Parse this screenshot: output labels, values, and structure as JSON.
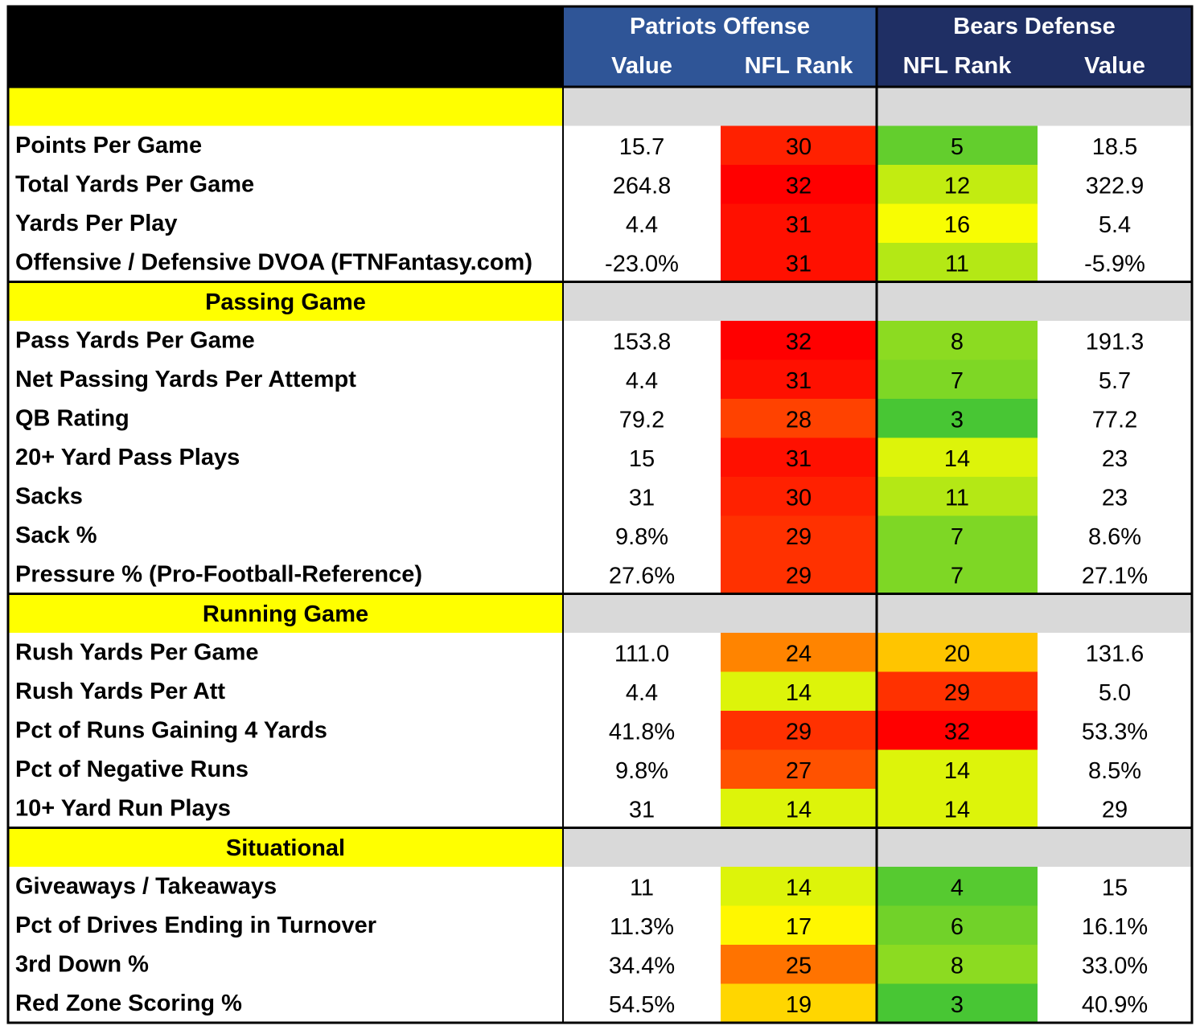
{
  "chart_data": {
    "type": "table",
    "header": {
      "offense_team": "Patriots Offense",
      "defense_team": "Bears Defense",
      "columns": [
        "Value",
        "NFL Rank",
        "NFL Rank",
        "Value"
      ]
    },
    "sections": [
      {
        "title": "",
        "rows": [
          {
            "label": "Points Per Game",
            "off_value": "15.7",
            "off_rank": 30,
            "def_rank": 5,
            "def_value": "18.5"
          },
          {
            "label": "Total Yards Per Game",
            "off_value": "264.8",
            "off_rank": 32,
            "def_rank": 12,
            "def_value": "322.9"
          },
          {
            "label": "Yards Per Play",
            "off_value": "4.4",
            "off_rank": 31,
            "def_rank": 16,
            "def_value": "5.4"
          },
          {
            "label": "Offensive / Defensive DVOA (FTNFantasy.com)",
            "off_value": "-23.0%",
            "off_rank": 31,
            "def_rank": 11,
            "def_value": "-5.9%"
          }
        ]
      },
      {
        "title": "Passing Game",
        "rows": [
          {
            "label": "Pass Yards Per Game",
            "off_value": "153.8",
            "off_rank": 32,
            "def_rank": 8,
            "def_value": "191.3"
          },
          {
            "label": "Net Passing Yards Per Attempt",
            "off_value": "4.4",
            "off_rank": 31,
            "def_rank": 7,
            "def_value": "5.7"
          },
          {
            "label": "QB Rating",
            "off_value": "79.2",
            "off_rank": 28,
            "def_rank": 3,
            "def_value": "77.2"
          },
          {
            "label": "20+ Yard Pass Plays",
            "off_value": "15",
            "off_rank": 31,
            "def_rank": 14,
            "def_value": "23"
          },
          {
            "label": "Sacks",
            "off_value": "31",
            "off_rank": 30,
            "def_rank": 11,
            "def_value": "23"
          },
          {
            "label": "Sack %",
            "off_value": "9.8%",
            "off_rank": 29,
            "def_rank": 7,
            "def_value": "8.6%"
          },
          {
            "label": "Pressure % (Pro-Football-Reference)",
            "off_value": "27.6%",
            "off_rank": 29,
            "def_rank": 7,
            "def_value": "27.1%"
          }
        ]
      },
      {
        "title": "Running Game",
        "rows": [
          {
            "label": "Rush Yards Per Game",
            "off_value": "111.0",
            "off_rank": 24,
            "def_rank": 20,
            "def_value": "131.6"
          },
          {
            "label": "Rush Yards Per Att",
            "off_value": "4.4",
            "off_rank": 14,
            "def_rank": 29,
            "def_value": "5.0"
          },
          {
            "label": "Pct of Runs Gaining 4 Yards",
            "off_value": "41.8%",
            "off_rank": 29,
            "def_rank": 32,
            "def_value": "53.3%"
          },
          {
            "label": "Pct of Negative Runs",
            "off_value": "9.8%",
            "off_rank": 27,
            "def_rank": 14,
            "def_value": "8.5%"
          },
          {
            "label": "10+ Yard Run Plays",
            "off_value": "31",
            "off_rank": 14,
            "def_rank": 14,
            "def_value": "29"
          }
        ]
      },
      {
        "title": "Situational",
        "rows": [
          {
            "label": "Giveaways / Takeaways",
            "off_value": "11",
            "off_rank": 14,
            "def_rank": 4,
            "def_value": "15"
          },
          {
            "label": "Pct of Drives Ending in Turnover",
            "off_value": "11.3%",
            "off_rank": 17,
            "def_rank": 6,
            "def_value": "16.1%"
          },
          {
            "label": "3rd Down %",
            "off_value": "34.4%",
            "off_rank": 25,
            "def_rank": 8,
            "def_value": "33.0%"
          },
          {
            "label": "Red Zone Scoring %",
            "off_value": "54.5%",
            "off_rank": 19,
            "def_rank": 3,
            "def_value": "40.9%"
          }
        ]
      }
    ],
    "colors": {
      "offense_header": "#2f5597",
      "defense_header": "#1f2f64",
      "section_label_bg": "#ffff00",
      "section_band_bg": "#d9d9d9",
      "corner_bg": "#000000",
      "rank_scale": {
        "best": "#2dbd3c",
        "mid": "#ffff00",
        "worst": "#ff0000"
      }
    }
  }
}
